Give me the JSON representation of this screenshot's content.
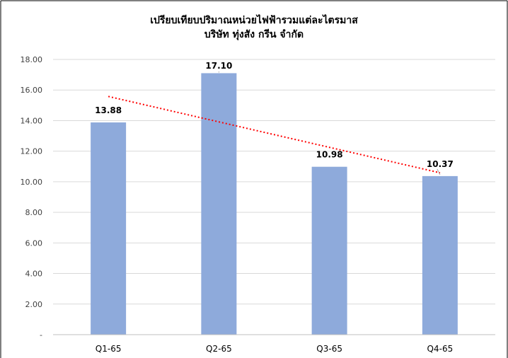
{
  "chart_data": {
    "type": "bar",
    "title": "เปรียบเทียบปริมาณหน่วยไฟฟ้ารวมแต่ละไตรมาส",
    "subtitle": "บริษัท ทุ่งสัง กรีน จำกัด",
    "categories": [
      "Q1-65",
      "Q2-65",
      "Q3-65",
      "Q4-65"
    ],
    "values": [
      13.88,
      17.1,
      10.98,
      10.37
    ],
    "data_labels": [
      "13.88",
      "17.10",
      "10.98",
      "10.37"
    ],
    "yticks": [
      "-",
      "2.00",
      "4.00",
      "6.00",
      "8.00",
      "10.00",
      "12.00",
      "14.00",
      "16.00",
      "18.00"
    ],
    "ylim": [
      0,
      18
    ],
    "grid": true,
    "trendline": {
      "type": "linear",
      "style": "dotted",
      "color": "#ff0000"
    },
    "colors": {
      "bar": "#8eaadb",
      "grid": "#d9d9d9",
      "trend": "#ff0000",
      "frame": "#000000"
    }
  }
}
